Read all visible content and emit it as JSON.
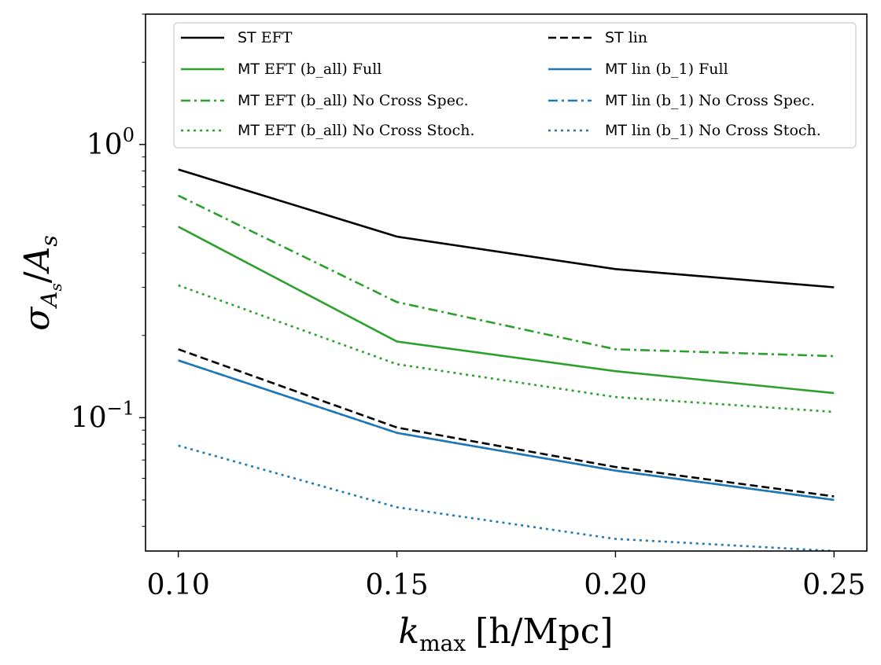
{
  "chart_data": {
    "type": "line",
    "title": "",
    "xlabel": {
      "symbol": "k",
      "subscript": "max",
      "unit": "[h/Mpc]"
    },
    "ylabel": {
      "symbol": "σ",
      "subscript": "A",
      "subsubscript": "s",
      "slash": "/",
      "denom": "A",
      "denom_subscript": "s"
    },
    "x": [
      0.1,
      0.15,
      0.2,
      0.25
    ],
    "xlim": [
      0.0925,
      0.2575
    ],
    "ylim": [
      0.033,
      3.0
    ],
    "yscale": "log",
    "xticks": [
      {
        "value": 0.1,
        "label": "0.10"
      },
      {
        "value": 0.15,
        "label": "0.15"
      },
      {
        "value": 0.2,
        "label": "0.20"
      },
      {
        "value": 0.25,
        "label": "0.25"
      }
    ],
    "yticks_major": [
      {
        "value": 1.0,
        "base": "10",
        "exp": "0"
      },
      {
        "value": 0.1,
        "base": "10",
        "exp": "−1"
      }
    ],
    "grid": false,
    "legend_position": "top",
    "colors": {
      "black": "#000000",
      "green": "#2ca02c",
      "blue": "#1f77b4"
    },
    "series": [
      {
        "id": "st-eft",
        "prefix": "ST",
        "label": " EFT",
        "color": "#000000",
        "style": "solid",
        "values": [
          0.81,
          0.46,
          0.35,
          0.3
        ]
      },
      {
        "id": "mt-eft-full",
        "prefix": "MT",
        "label": " EFT (b_all) Full",
        "color": "#2ca02c",
        "style": "solid",
        "values": [
          0.5,
          0.19,
          0.148,
          0.123
        ]
      },
      {
        "id": "mt-eft-nocross-spec",
        "prefix": "MT",
        "label": " EFT (b_all) No Cross Spec.",
        "color": "#2ca02c",
        "style": "dashdot",
        "values": [
          0.65,
          0.265,
          0.178,
          0.168
        ]
      },
      {
        "id": "mt-eft-nocross-stoch",
        "prefix": "MT",
        "label": " EFT (b_all) No Cross Stoch.",
        "color": "#2ca02c",
        "style": "dotted",
        "values": [
          0.305,
          0.157,
          0.119,
          0.105
        ]
      },
      {
        "id": "st-lin",
        "prefix": "ST",
        "label": " lin",
        "color": "#000000",
        "style": "dashed",
        "values": [
          0.178,
          0.092,
          0.066,
          0.0515
        ]
      },
      {
        "id": "mt-lin-full",
        "prefix": "MT",
        "label": " lin (b_1) Full",
        "color": "#1f77b4",
        "style": "solid",
        "values": [
          0.162,
          0.088,
          0.064,
          0.05
        ]
      },
      {
        "id": "mt-lin-nocross-spec",
        "prefix": "MT",
        "label": " lin (b_1) No Cross Spec.",
        "color": "#1f77b4",
        "style": "dashdot",
        "values": [
          0.162,
          0.088,
          0.064,
          0.05
        ]
      },
      {
        "id": "mt-lin-nocross-stoch",
        "prefix": "MT",
        "label": " lin (b_1) No Cross Stoch.",
        "color": "#1f77b4",
        "style": "dotted",
        "values": [
          0.079,
          0.047,
          0.036,
          0.0325
        ]
      }
    ]
  }
}
